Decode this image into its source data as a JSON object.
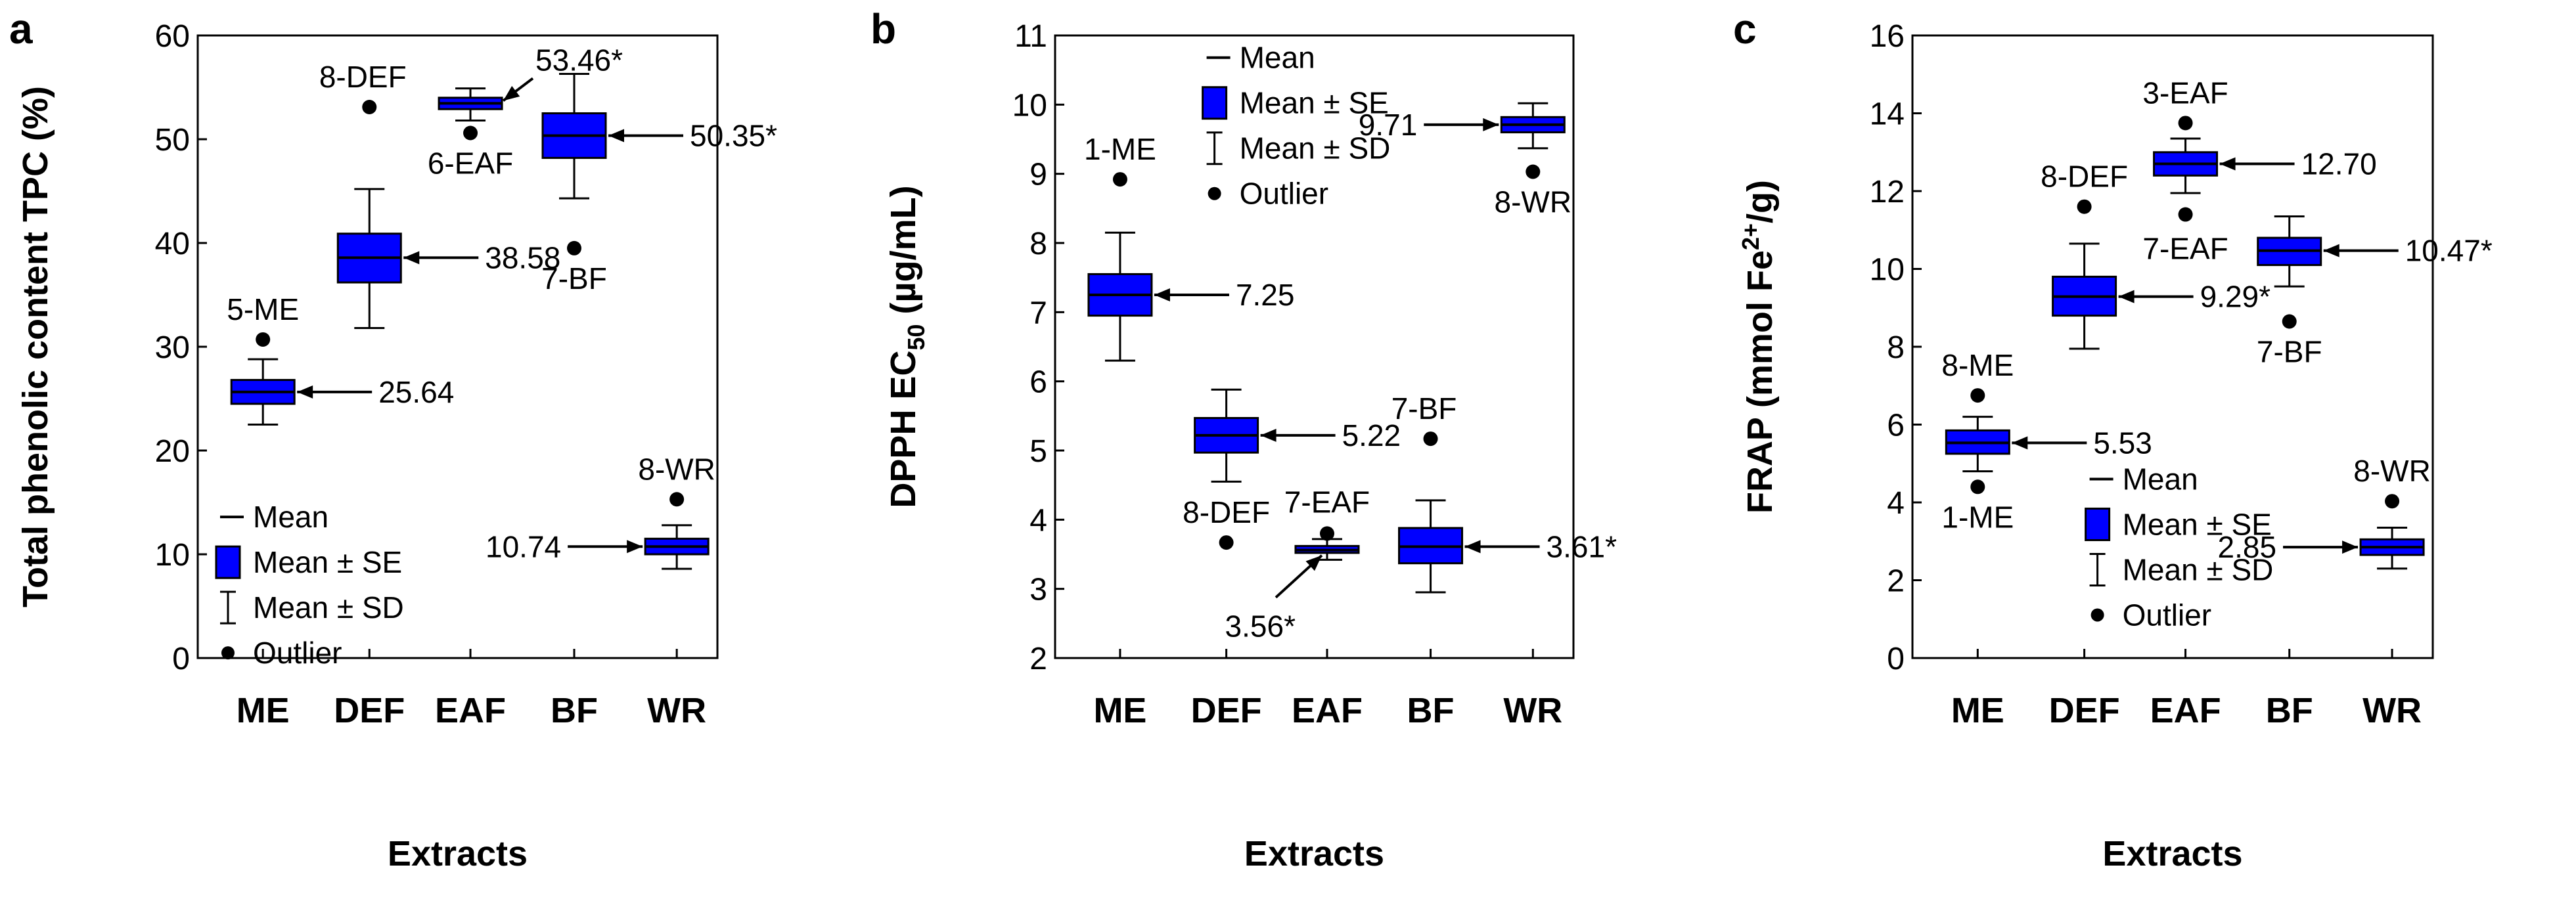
{
  "box_color": "#0000ff",
  "chart_data": [
    {
      "panel": "a",
      "type": "box",
      "categories": [
        "ME",
        "DEF",
        "EAF",
        "BF",
        "WR"
      ],
      "xlabel": "Extracts",
      "ylabel": "Total phenolic content TPC (%)",
      "ylim": [
        0,
        60
      ],
      "yticks": [
        0,
        10,
        20,
        30,
        40,
        50,
        60
      ],
      "legend_position": "bottom-left",
      "legend": [
        "Mean",
        "Mean ± SE",
        "Mean ± SD",
        "Outlier"
      ],
      "boxes": [
        {
          "category": "ME",
          "mean": 25.64,
          "se": [
            24.5,
            26.8
          ],
          "sd": [
            22.5,
            28.8
          ],
          "label": "25.64",
          "outlier": 30.7,
          "outlier_label": "5-ME"
        },
        {
          "category": "DEF",
          "mean": 38.58,
          "se": [
            36.2,
            40.9
          ],
          "sd": [
            31.8,
            45.2
          ],
          "label": "38.58",
          "outlier": 53.1,
          "outlier_label": "8-DEF"
        },
        {
          "category": "EAF",
          "mean": 53.46,
          "se": [
            52.9,
            54.0
          ],
          "sd": [
            51.8,
            54.9
          ],
          "label": "53.46*",
          "outlier": 50.6,
          "outlier_label": "6-EAF"
        },
        {
          "category": "BF",
          "mean": 50.35,
          "se": [
            48.2,
            52.5
          ],
          "sd": [
            44.3,
            56.3
          ],
          "label": "50.35*",
          "outlier": 39.5,
          "outlier_label": "7-BF"
        },
        {
          "category": "WR",
          "mean": 10.74,
          "se": [
            10.0,
            11.5
          ],
          "sd": [
            8.6,
            12.8
          ],
          "label": "10.74",
          "outlier": 15.3,
          "outlier_label": "8-WR"
        }
      ]
    },
    {
      "panel": "b",
      "type": "box",
      "categories": [
        "ME",
        "DEF",
        "EAF",
        "BF",
        "WR"
      ],
      "xlabel": "Extracts",
      "ylabel": "DPPH EC",
      "ylabel_sub": "50",
      "ylabel_unit": "(µg/mL)",
      "ylim": [
        2,
        11
      ],
      "yticks": [
        2,
        3,
        4,
        5,
        6,
        7,
        8,
        9,
        10,
        11
      ],
      "legend_position": "top-center",
      "legend": [
        "Mean",
        "Mean ± SE",
        "Mean ± SD",
        "Outlier"
      ],
      "boxes": [
        {
          "category": "ME",
          "mean": 7.25,
          "se": [
            6.95,
            7.55
          ],
          "sd": [
            6.3,
            8.15
          ],
          "label": "7.25",
          "outlier": 8.92,
          "outlier_label": "1-ME"
        },
        {
          "category": "DEF",
          "mean": 5.22,
          "se": [
            4.97,
            5.47
          ],
          "sd": [
            4.55,
            5.88
          ],
          "label": "5.22",
          "outlier": 3.67,
          "outlier_label": "8-DEF"
        },
        {
          "category": "EAF",
          "mean": 3.56,
          "se": [
            3.52,
            3.62
          ],
          "sd": [
            3.42,
            3.72
          ],
          "label": "3.56*",
          "outlier": 3.8,
          "outlier_label": "7-EAF"
        },
        {
          "category": "BF",
          "mean": 3.61,
          "se": [
            3.37,
            3.88
          ],
          "sd": [
            2.95,
            4.28
          ],
          "label": "3.61*",
          "outlier": 5.17,
          "outlier_label": "7-BF"
        },
        {
          "category": "WR",
          "mean": 9.71,
          "se": [
            9.6,
            9.82
          ],
          "sd": [
            9.37,
            10.02
          ],
          "label": "9.71",
          "outlier": 9.03,
          "outlier_label": "8-WR"
        }
      ]
    },
    {
      "panel": "c",
      "type": "box",
      "categories": [
        "ME",
        "DEF",
        "EAF",
        "BF",
        "WR"
      ],
      "xlabel": "Extracts",
      "ylabel": "FRAP (mmol Fe",
      "ylabel_sup": "2+",
      "ylabel_unit": "/g)",
      "ylim": [
        0,
        16
      ],
      "yticks": [
        0,
        2,
        4,
        6,
        8,
        10,
        12,
        14,
        16
      ],
      "legend_position": "bottom-center",
      "legend": [
        "Mean",
        "Mean ± SE",
        "Mean ± SD",
        "Outlier"
      ],
      "boxes": [
        {
          "category": "ME",
          "mean": 5.53,
          "se": [
            5.25,
            5.85
          ],
          "sd": [
            4.8,
            6.2
          ],
          "label": "5.53",
          "outlier": 6.75,
          "outlier_label": "8-ME",
          "outlier2": 4.4,
          "outlier2_label": "1-ME"
        },
        {
          "category": "DEF",
          "mean": 9.29,
          "se": [
            8.8,
            9.8
          ],
          "sd": [
            7.95,
            10.65
          ],
          "label": "9.29*",
          "outlier": 11.6,
          "outlier_label": "8-DEF"
        },
        {
          "category": "EAF",
          "mean": 12.7,
          "se": [
            12.4,
            13.0
          ],
          "sd": [
            11.95,
            13.35
          ],
          "label": "12.70",
          "outlier": 13.75,
          "outlier_label": "3-EAF",
          "outlier2": 11.4,
          "outlier2_label": "7-EAF"
        },
        {
          "category": "BF",
          "mean": 10.47,
          "se": [
            10.1,
            10.8
          ],
          "sd": [
            9.55,
            11.35
          ],
          "label": "10.47*",
          "outlier": 8.65,
          "outlier_label": "7-BF"
        },
        {
          "category": "WR",
          "mean": 2.85,
          "se": [
            2.65,
            3.05
          ],
          "sd": [
            2.3,
            3.35
          ],
          "label": "2.85",
          "outlier": 4.03,
          "outlier_label": "8-WR"
        }
      ]
    }
  ]
}
